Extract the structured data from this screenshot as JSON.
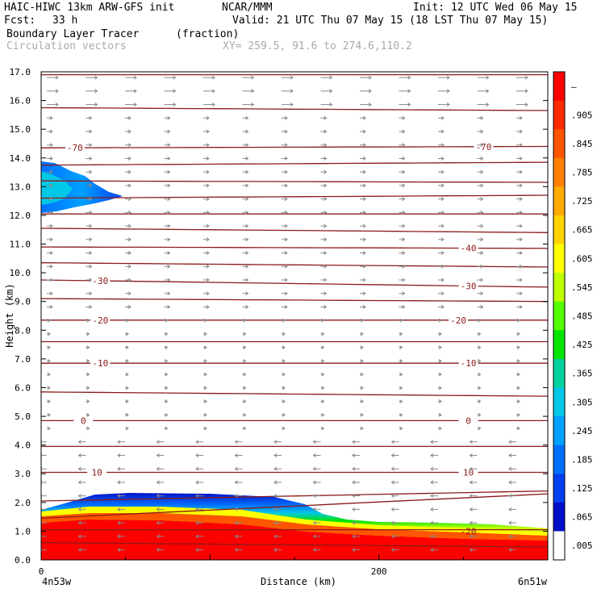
{
  "header": {
    "model": "HAIC-HIWC 13km ARW-GFS init",
    "org": "NCAR/MMM",
    "init": "Init: 12 UTC Wed 06 May 15",
    "fcst_label": "Fcst:",
    "fcst_value": "33 h",
    "valid": "Valid: 21 UTC Thu 07 May 15 (18 LST Thu 07 May 15)",
    "field1": "Boundary Layer Tracer",
    "field1_units": "(fraction)",
    "field2": "Circulation vectors",
    "xy": "XY= 259.5, 91.6 to 274.6,110.2"
  },
  "chart_data": {
    "type": "heatmap",
    "ylabel": "Height (km)",
    "xlabel": "Distance (km)",
    "x_left_label": "4n53w",
    "x_right_label": "6n51w",
    "xlim": [
      0,
      300
    ],
    "ylim": [
      0,
      17
    ],
    "x_ticks": [
      {
        "v": 0,
        "label": "0"
      },
      {
        "v": 200,
        "label": "200"
      }
    ],
    "y_ticks": [
      {
        "v": 0,
        "label": "0.0"
      },
      {
        "v": 1,
        "label": "1.0"
      },
      {
        "v": 2,
        "label": "2.0"
      },
      {
        "v": 3,
        "label": "3.0"
      },
      {
        "v": 4,
        "label": "4.0"
      },
      {
        "v": 5,
        "label": "5.0"
      },
      {
        "v": 6,
        "label": "6.0"
      },
      {
        "v": 7,
        "label": "7.0"
      },
      {
        "v": 8,
        "label": "8.0"
      },
      {
        "v": 9,
        "label": "9.0"
      },
      {
        "v": 10,
        "label": "10.0"
      },
      {
        "v": 11,
        "label": "11.0"
      },
      {
        "v": 12,
        "label": "12.0"
      },
      {
        "v": 13,
        "label": "13.0"
      },
      {
        "v": 14,
        "label": "14.0"
      },
      {
        "v": 15,
        "label": "15.0"
      },
      {
        "v": 16,
        "label": "16.0"
      },
      {
        "v": 17,
        "label": "17.0"
      }
    ],
    "colorbar": {
      "labels": [
        "–",
        ".905",
        ".845",
        ".785",
        ".725",
        ".665",
        ".605",
        ".545",
        ".485",
        ".425",
        ".365",
        ".305",
        ".245",
        ".185",
        ".125",
        ".065",
        ".005"
      ],
      "colors": [
        "#ff0000",
        "#ff2a00",
        "#ff5500",
        "#ff7f00",
        "#ffaa00",
        "#ffd400",
        "#ffff00",
        "#bfff00",
        "#55ff00",
        "#00e400",
        "#00d2a0",
        "#00c8e6",
        "#00a0ff",
        "#0070ff",
        "#0040f0",
        "#0010c8",
        "#ffffff"
      ]
    },
    "temperature_contours": [
      {
        "y0": 0.6,
        "y1": 0.45,
        "label": "",
        "lx": []
      },
      {
        "y0": 1.05,
        "y1": 1.05,
        "label": "",
        "lx": []
      },
      {
        "y0": 1.45,
        "y1": 2.3,
        "label": "",
        "lx": []
      },
      {
        "y0": 2.05,
        "y1": 2.4,
        "label": "",
        "lx": []
      },
      {
        "y0": 3.05,
        "y1": 3.05,
        "label": "10",
        "lx": [
          33,
          253
        ]
      },
      {
        "y0": 3.95,
        "y1": 3.95,
        "label": "",
        "lx": []
      },
      {
        "y0": 4.85,
        "y1": 4.85,
        "label": "0",
        "lx": [
          25,
          253
        ]
      },
      {
        "y0": 5.85,
        "y1": 5.7,
        "label": "",
        "lx": []
      },
      {
        "y0": 6.85,
        "y1": 6.85,
        "label": "-10",
        "lx": [
          35,
          253
        ]
      },
      {
        "y0": 7.6,
        "y1": 7.6,
        "label": "",
        "lx": []
      },
      {
        "y0": 8.35,
        "y1": 8.35,
        "label": "-20",
        "lx": [
          35,
          247
        ]
      },
      {
        "y0": 9.1,
        "y1": 9.0,
        "label": "",
        "lx": []
      },
      {
        "y0": 9.75,
        "y1": 9.5,
        "label": "-30",
        "lx": [
          35,
          253
        ]
      },
      {
        "y0": 10.35,
        "y1": 10.2,
        "label": "",
        "lx": []
      },
      {
        "y0": 10.9,
        "y1": 10.85,
        "label": "-40",
        "lx": [
          253
        ]
      },
      {
        "y0": 11.55,
        "y1": 11.4,
        "label": "",
        "lx": []
      },
      {
        "y0": 12.05,
        "y1": 12.05,
        "label": "",
        "lx": []
      },
      {
        "y0": 12.6,
        "y1": 12.7,
        "label": "",
        "lx": []
      },
      {
        "y0": 13.2,
        "y1": 13.15,
        "label": "",
        "lx": []
      },
      {
        "y0": 13.75,
        "y1": 13.85,
        "label": "",
        "lx": []
      },
      {
        "y0": 14.35,
        "y1": 14.4,
        "label": "-70",
        "lx": [
          20,
          262
        ]
      },
      {
        "y0": 15.75,
        "y1": 15.65,
        "label": "",
        "lx": []
      },
      {
        "y0": 16.9,
        "y1": 16.9,
        "label": "",
        "lx": []
      }
    ],
    "extra_labels": [
      {
        "text": "-20",
        "x": 253,
        "y": 1.0
      }
    ]
  }
}
